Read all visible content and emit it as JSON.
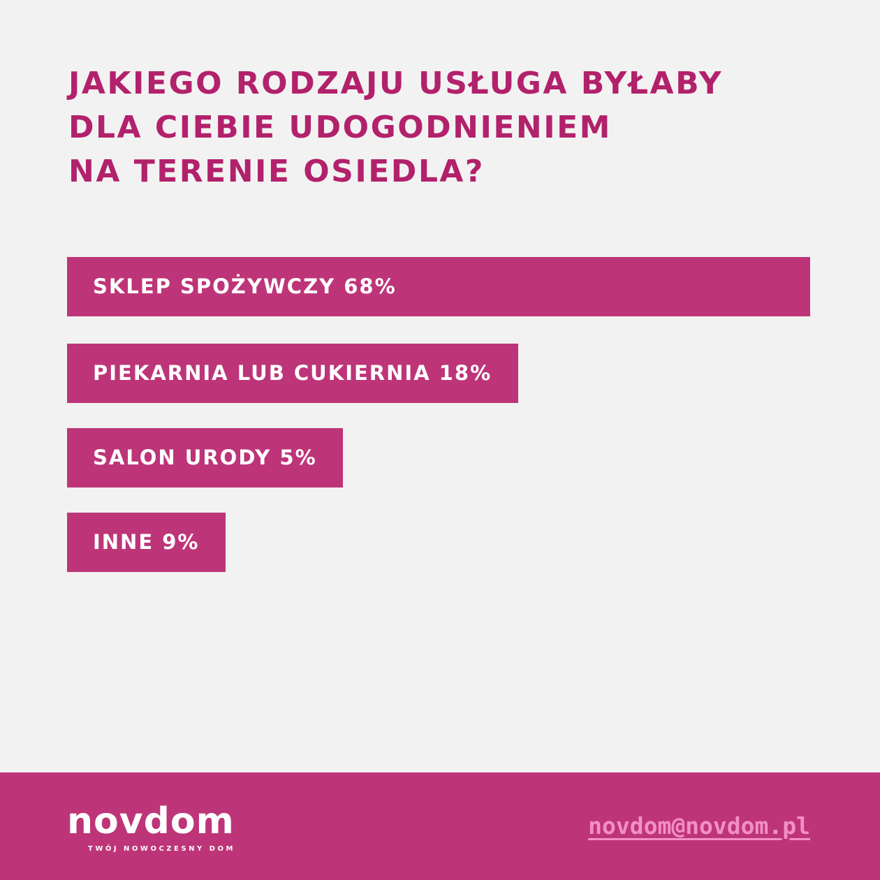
{
  "chart_data": {
    "type": "bar",
    "orientation": "horizontal",
    "title_lines": [
      "JAKIEGO RODZAJU USŁUGA BYŁABY",
      "DLA CIEBIE UDOGODNIENIEM",
      "NA TERENIE OSIEDLA?"
    ],
    "categories": [
      "SKLEP SPOŻYWCZY",
      "PIEKARNIA LUB CUKIERNIA",
      "SALON URODY",
      "INNE"
    ],
    "values": [
      68,
      18,
      5,
      9
    ],
    "value_labels": [
      "68%",
      "18%",
      "5%",
      "9%"
    ],
    "bar_texts": [
      "SKLEP SPOŻYWCZY  68%",
      "PIEKARNIA LUB CUKIERNIA 18%",
      "SALON URODY 5%",
      "INNE  9%"
    ],
    "bar_color": "#bd3578",
    "title_color": "#b2216b",
    "label_color": "#ffffff"
  },
  "footer": {
    "background": "#bd3578",
    "logo_text": "novdom",
    "logo_tagline": "TWÓJ NOWOCZESNY DOM",
    "email": "novdom@novdom.pl",
    "email_color": "#f38fc6"
  }
}
